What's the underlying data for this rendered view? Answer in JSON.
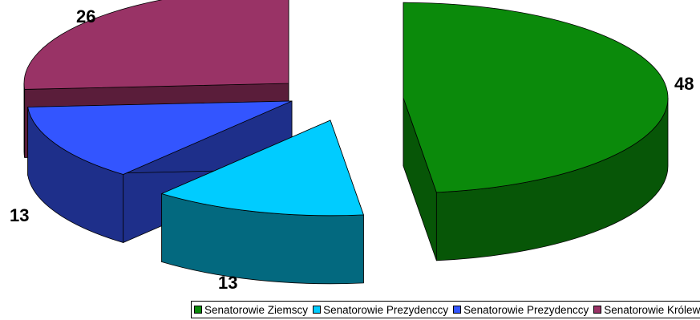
{
  "chart_data": {
    "type": "pie",
    "style": "3d-exploded",
    "title": "",
    "slices": [
      {
        "name": "Senatorowie Ziemscy",
        "value": 48,
        "label": "48",
        "color": "#0b8a0b",
        "side_color": "#075607"
      },
      {
        "name": "Senatorowie Prezydenccy",
        "value": 13,
        "label": "13",
        "color": "#00ccff",
        "side_color": "#03697f"
      },
      {
        "name": "Senatorowie Prezydenccy",
        "value": 13,
        "label": "13",
        "color": "#3355ff",
        "side_color": "#1e2f8a"
      },
      {
        "name": "Senatorowie Królewscy",
        "value": 26,
        "label": "26",
        "color": "#993366",
        "side_color": "#5a1d3a"
      }
    ],
    "legend_position": "bottom"
  },
  "legend": {
    "items": [
      {
        "label": "Senatorowie Ziemscy",
        "color": "#0b8a0b"
      },
      {
        "label": "Senatorowie Prezydenccy",
        "color": "#00ccff"
      },
      {
        "label": "Senatorowie Prezydenccy",
        "color": "#3355ff"
      },
      {
        "label": "Senatorowie Królewscy",
        "color": "#993366"
      }
    ]
  }
}
